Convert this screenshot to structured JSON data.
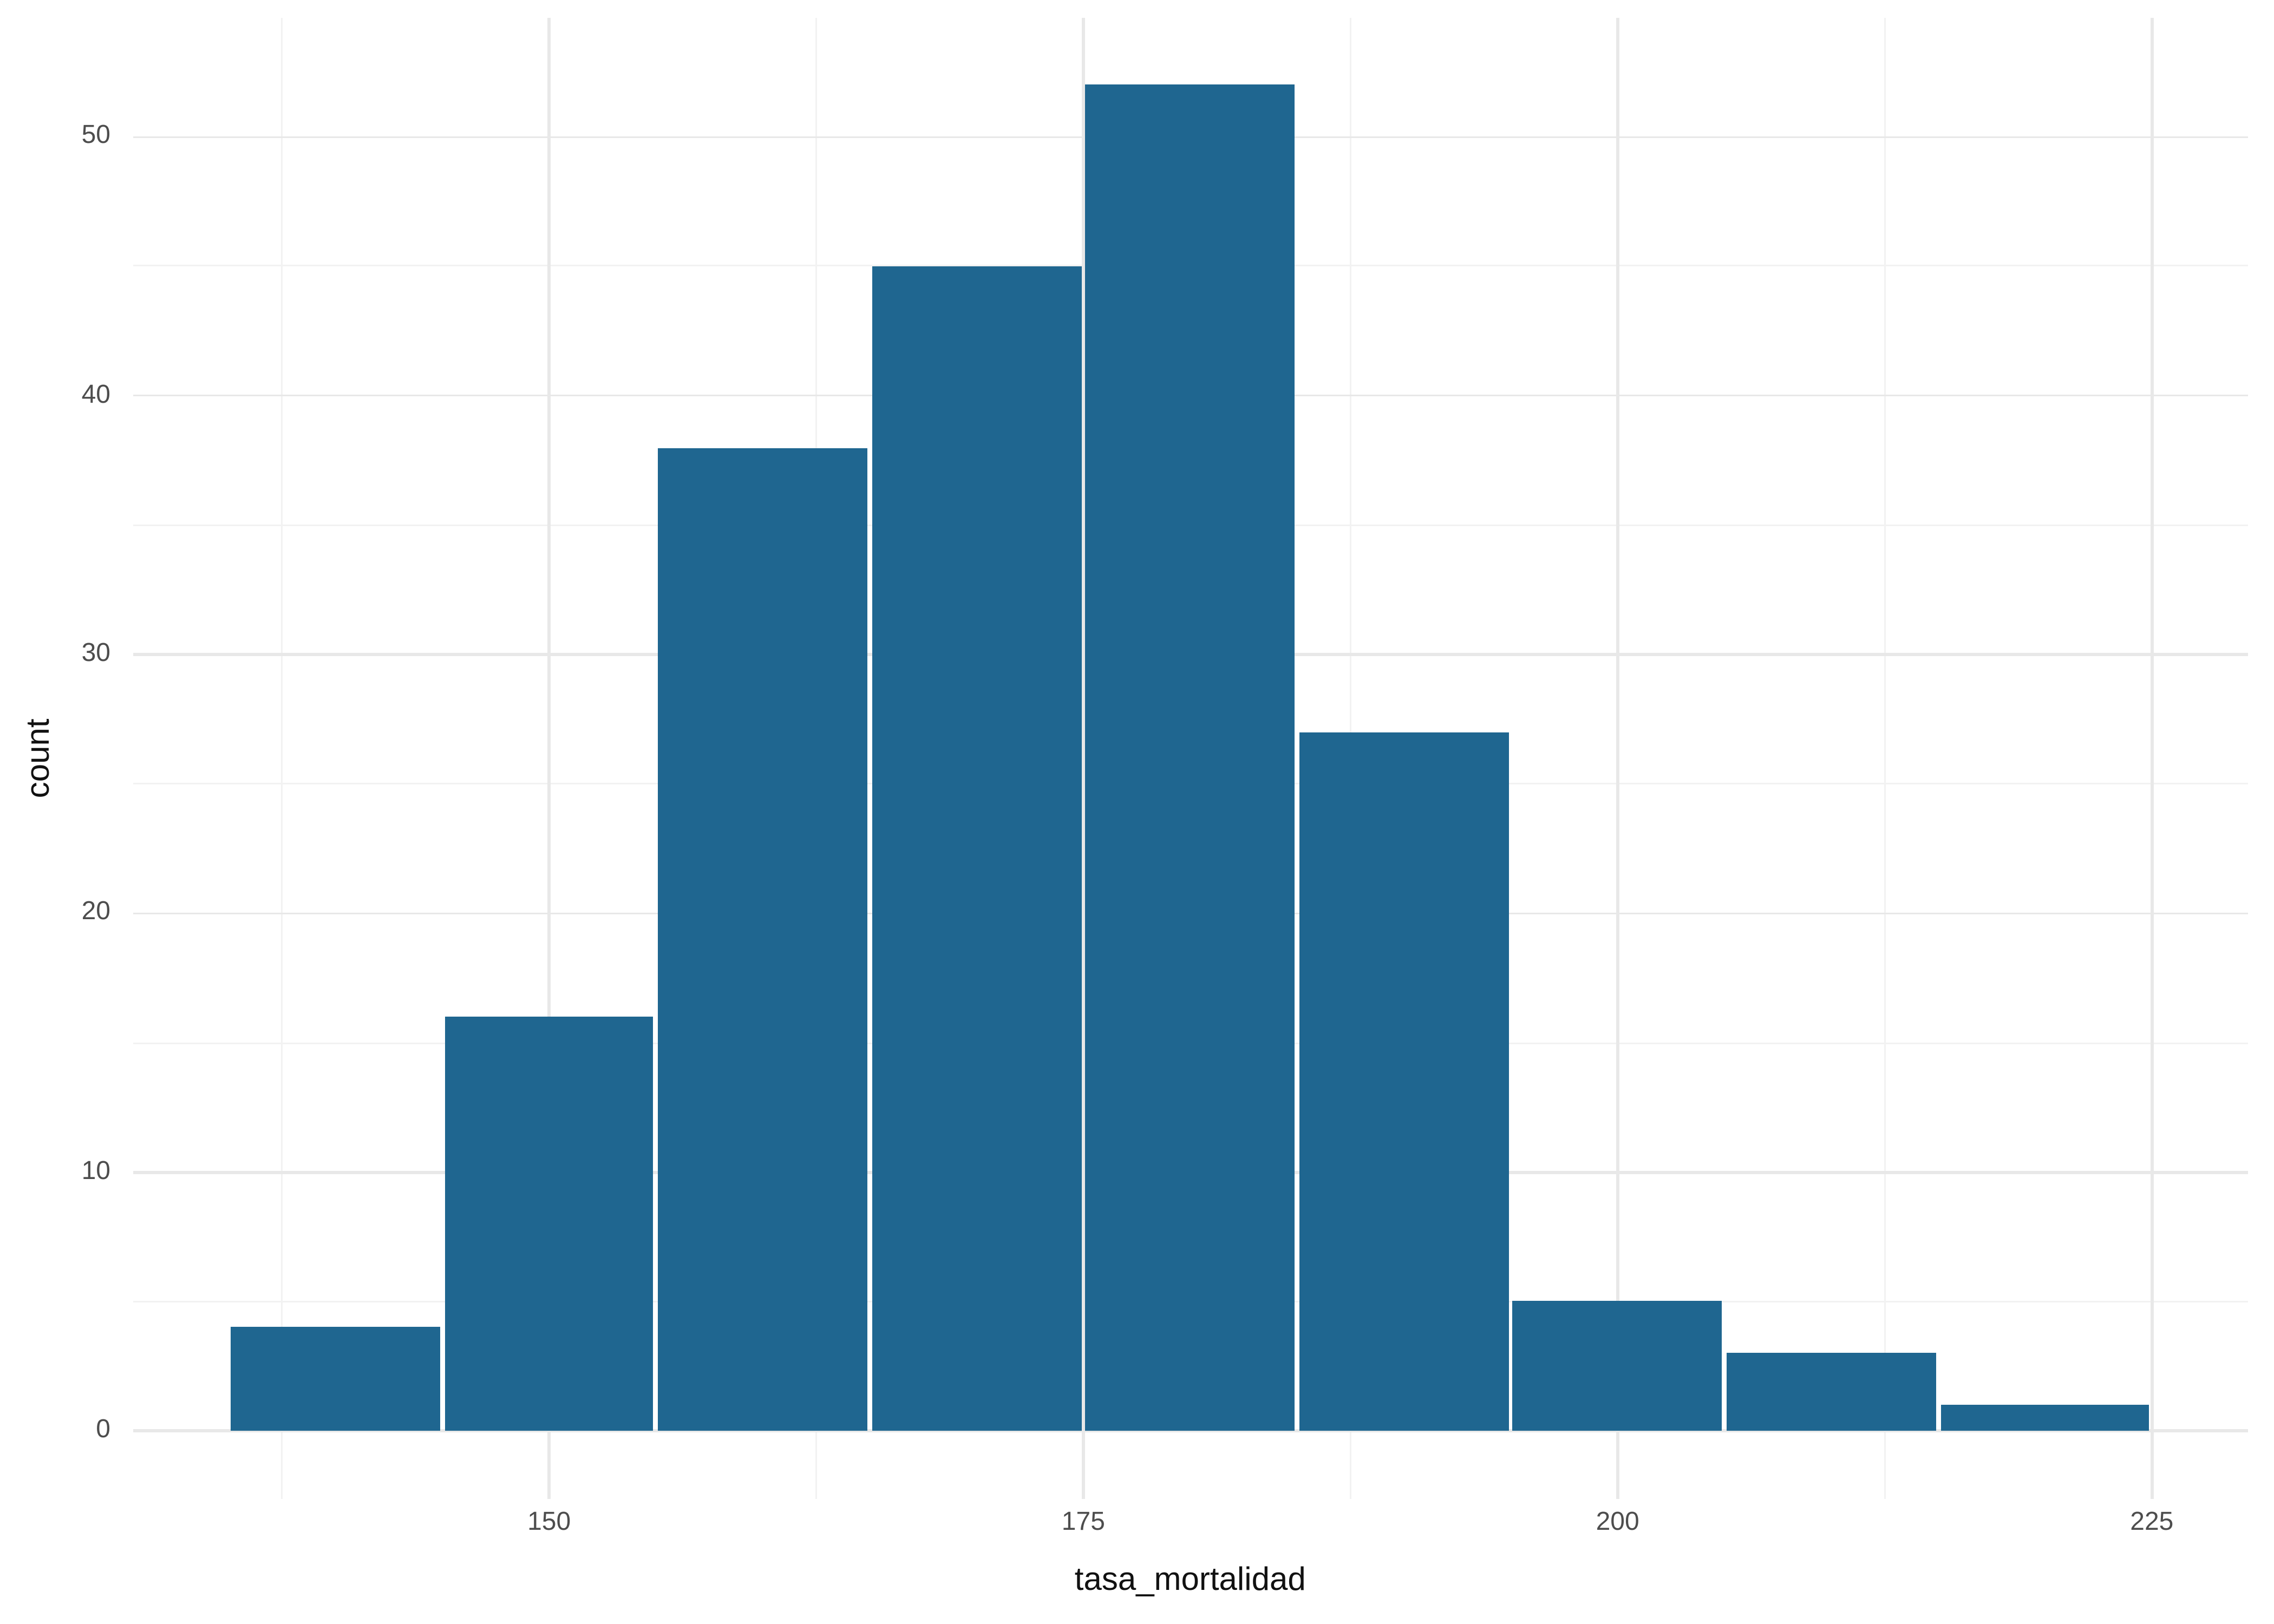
{
  "chart_data": {
    "type": "bar",
    "subtype": "histogram",
    "title": "",
    "xlabel": "tasa_mortalidad",
    "ylabel": "count",
    "bin_width": 10,
    "bin_edges": [
      135,
      145,
      155,
      165,
      175,
      185,
      195,
      205,
      215,
      225
    ],
    "bin_centers": [
      140,
      150,
      160,
      170,
      180,
      190,
      200,
      210,
      220
    ],
    "counts": [
      4,
      16,
      38,
      45,
      52,
      27,
      5,
      3,
      1
    ],
    "x_major_ticks": [
      150,
      175,
      200,
      225
    ],
    "x_minor_gridlines": [
      137.5,
      162.5,
      187.5,
      212.5
    ],
    "y_major_ticks": [
      0,
      10,
      20,
      30,
      40,
      50
    ],
    "y_minor_gridlines": [
      5,
      15,
      25,
      35,
      45
    ],
    "xlim": [
      130.5,
      229.5
    ],
    "ylim": [
      -2.6,
      54.6
    ],
    "grid": "major+minor",
    "legend_position": "none"
  },
  "colors": {
    "bar_fill": "#1f6690",
    "grid_major": "#e8e8e8",
    "grid_minor": "#f2f2f2",
    "tick_text": "#4d4d4d",
    "axis_title_text": "#111111",
    "background": "#ffffff"
  }
}
